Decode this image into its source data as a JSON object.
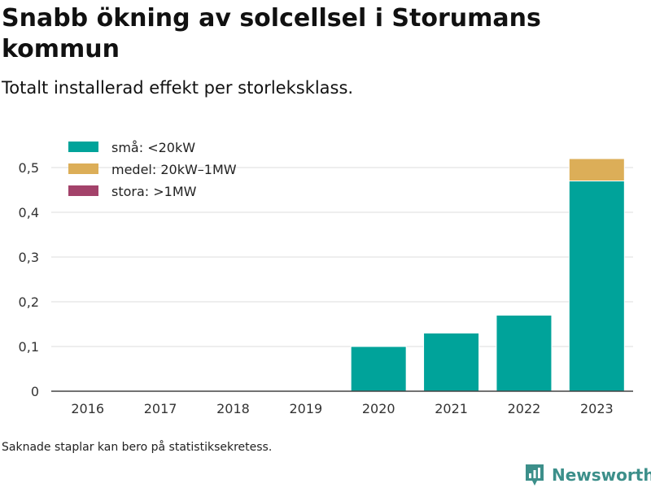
{
  "title": "Snabb ökning av solcellsel i Storumans kommun",
  "subtitle": "Totalt installerad effekt per storleksklass.",
  "footnote": "Saknade staplar kan bero på statistiksekretess.",
  "brand": {
    "name": "Newsworthy",
    "icon": "newsworthy-logo-icon",
    "color": "#3c8f8a"
  },
  "chart_data": {
    "type": "bar",
    "stacked": true,
    "categories": [
      "2016",
      "2017",
      "2018",
      "2019",
      "2020",
      "2021",
      "2022",
      "2023"
    ],
    "series": [
      {
        "name": "små: <20kW",
        "color": "#00a39a",
        "values": [
          0,
          0,
          0,
          0,
          0.1,
          0.13,
          0.17,
          0.47
        ]
      },
      {
        "name": "medel: 20kW–1MW",
        "color": "#dcae58",
        "values": [
          0,
          0,
          0,
          0,
          0,
          0,
          0,
          0.05
        ]
      },
      {
        "name": "stora: >1MW",
        "color": "#a3426a",
        "values": [
          0,
          0,
          0,
          0,
          0,
          0,
          0,
          0
        ]
      }
    ],
    "yticks": [
      0,
      0.1,
      0.2,
      0.3,
      0.4,
      0.5
    ],
    "ytick_labels": [
      "0",
      "0,1",
      "0,2",
      "0,3",
      "0,4",
      "0,5"
    ],
    "ylim": [
      0,
      0.55
    ],
    "grid": true,
    "legend": "top-left"
  }
}
